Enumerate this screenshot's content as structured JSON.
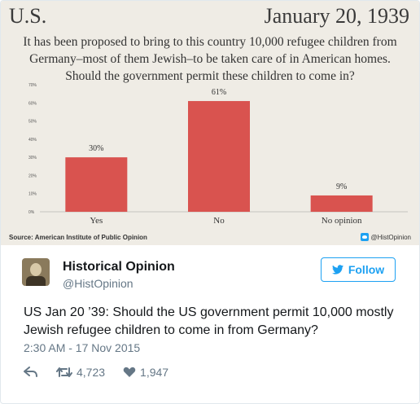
{
  "poll": {
    "region": "U.S.",
    "date": "January 20, 1939",
    "question": "It has been proposed to bring to this country 10,000 refugee children from Germany–most of them Jewish–to be taken care of in American homes. Should the government permit these children to come in?",
    "source": "Source: American Institute of Public Opinion",
    "handle_tag": "@HistOpinion"
  },
  "chart_data": {
    "type": "bar",
    "categories": [
      "Yes",
      "No",
      "No opinion"
    ],
    "values": [
      30,
      61,
      9
    ],
    "value_labels": [
      "30%",
      "61%",
      "9%"
    ],
    "yticks": [
      "0%",
      "10%",
      "20%",
      "30%",
      "40%",
      "50%",
      "60%",
      "70%"
    ],
    "ylim": [
      0,
      70
    ],
    "bar_color": "#d9534f"
  },
  "tweet": {
    "display_name": "Historical Opinion",
    "handle": "@HistOpinion",
    "follow_label": "Follow",
    "text": "US Jan 20 ’39: Should the US government permit 10,000 mostly Jewish refugee children to come in from Germany?",
    "timestamp": "2:30 AM - 17 Nov 2015",
    "retweets": "4,723",
    "likes": "1,947"
  },
  "colors": {
    "accent": "#1da1f2",
    "muted": "#657786",
    "poll_bg": "#efece5"
  },
  "icons": [
    "twitter-bird-icon",
    "reply-icon",
    "retweet-icon",
    "heart-icon"
  ]
}
